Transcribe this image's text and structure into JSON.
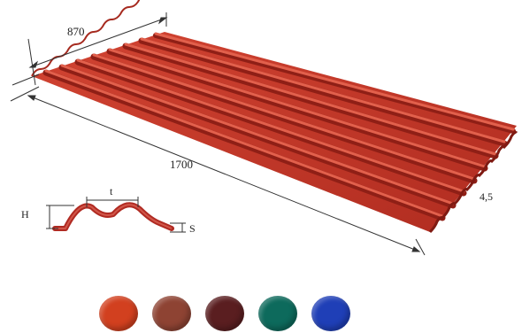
{
  "diagram": {
    "dimensions": {
      "width": "870",
      "length": "1700",
      "wave_count_label": "4,5"
    },
    "profile": {
      "height_label": "H",
      "pitch_label": "t",
      "thickness_label": "S"
    },
    "sheet_color": "#c83a28",
    "colors": {
      "swatches": [
        {
          "name": "red",
          "hex": "#d2401f"
        },
        {
          "name": "brown",
          "hex": "#8e4333"
        },
        {
          "name": "dark-brown",
          "hex": "#5a1e20"
        },
        {
          "name": "green",
          "hex": "#0d6a5c"
        },
        {
          "name": "blue",
          "hex": "#1f3fb7"
        }
      ]
    }
  }
}
